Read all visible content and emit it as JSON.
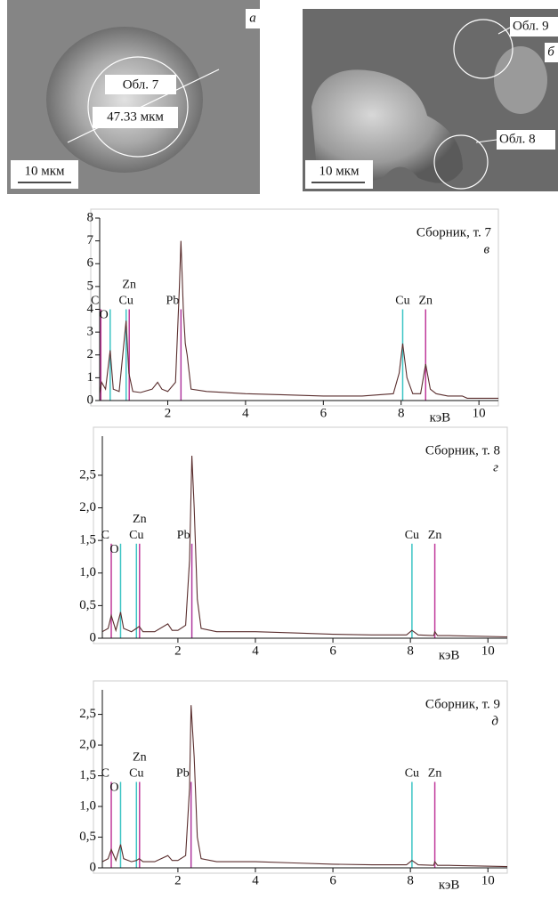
{
  "images": [
    {
      "letter": "а",
      "region": "Обл. 7",
      "size": "47.33 мкм",
      "scale": "10 мкм"
    },
    {
      "letter": "б",
      "regions": [
        "Обл. 9",
        "Обл. 8"
      ],
      "scale": "10 мкм"
    }
  ],
  "chart_data": [
    {
      "type": "line",
      "annotation": "Сборник, т. 7",
      "letter": "в",
      "x_label": "кэВ",
      "xlim": [
        0.25,
        10.5
      ],
      "xticks": [
        2,
        4,
        6,
        8,
        10
      ],
      "ylim": [
        0,
        8
      ],
      "yticks": [
        0,
        1,
        2,
        3,
        4,
        5,
        6,
        7,
        8
      ],
      "color": "#5a2e2e",
      "x": [
        0.25,
        0.3,
        0.4,
        0.52,
        0.6,
        0.75,
        0.93,
        1.0,
        1.1,
        1.3,
        1.6,
        1.74,
        1.85,
        2.0,
        2.2,
        2.3,
        2.34,
        2.4,
        2.45,
        2.5,
        2.6,
        3.0,
        4,
        5,
        6,
        7,
        7.8,
        7.95,
        8.04,
        8.15,
        8.3,
        8.5,
        8.63,
        8.75,
        8.9,
        9.2,
        9.57,
        9.7,
        10.5
      ],
      "values": [
        0.3,
        0.8,
        0.5,
        2.2,
        0.5,
        0.4,
        3.5,
        1.2,
        0.4,
        0.35,
        0.5,
        0.8,
        0.5,
        0.4,
        0.8,
        5,
        7,
        4,
        2.5,
        2.0,
        0.5,
        0.4,
        0.3,
        0.25,
        0.2,
        0.2,
        0.3,
        1.2,
        2.5,
        1.0,
        0.3,
        0.3,
        1.6,
        0.5,
        0.3,
        0.2,
        0.2,
        0.1,
        0.1
      ],
      "lines": [
        {
          "label": "C",
          "x": 0.28,
          "height": 4,
          "color": "#c0399a"
        },
        {
          "label": "O",
          "x": 0.52,
          "height": 4,
          "color": "#3cc4c4"
        },
        {
          "label": "Cu",
          "x": 0.93,
          "height": 4,
          "color": "#3cc4c4"
        },
        {
          "label": "Zn",
          "x": 1.01,
          "height": 4,
          "color": "#c0399a"
        },
        {
          "label": "Pb",
          "x": 2.34,
          "height": 4,
          "color": "#b03aa0"
        },
        {
          "label": "Cu",
          "x": 8.04,
          "height": 4,
          "color": "#3cc4c4"
        },
        {
          "label": "Zn",
          "x": 8.63,
          "height": 4,
          "color": "#c0399a"
        }
      ]
    },
    {
      "type": "line",
      "annotation": "Сборник, т. 8",
      "letter": "г",
      "x_label": "кэВ",
      "xlim": [
        0.05,
        10.5
      ],
      "xticks": [
        2,
        4,
        6,
        8,
        10
      ],
      "ylim": [
        0,
        3.1
      ],
      "yticks": [
        0,
        {
          "value": 0.5,
          "label": "0,5"
        },
        {
          "value": 1,
          "label": "1,0"
        },
        {
          "value": 1.5,
          "label": "1,5"
        },
        {
          "value": 2,
          "label": "2,0"
        },
        {
          "value": 2.5,
          "label": "2,5"
        }
      ],
      "color": "#5a2e2e",
      "x": [
        0.05,
        0.2,
        0.28,
        0.4,
        0.52,
        0.6,
        0.8,
        0.93,
        1.0,
        1.1,
        1.4,
        1.74,
        1.85,
        2.0,
        2.2,
        2.3,
        2.36,
        2.42,
        2.5,
        2.6,
        3.0,
        4,
        5,
        6,
        7,
        7.9,
        8.04,
        8.2,
        8.6,
        8.63,
        8.7,
        9.0,
        10.5
      ],
      "values": [
        0.1,
        0.15,
        0.35,
        0.12,
        0.4,
        0.15,
        0.1,
        0.15,
        0.18,
        0.1,
        0.1,
        0.22,
        0.12,
        0.12,
        0.2,
        1.2,
        2.8,
        2.0,
        0.6,
        0.15,
        0.1,
        0.1,
        0.08,
        0.06,
        0.05,
        0.05,
        0.12,
        0.05,
        0.04,
        0.1,
        0.04,
        0.04,
        0.02
      ],
      "lines": [
        {
          "label": "C",
          "x": 0.28,
          "height": 1.45,
          "color": "#c0399a"
        },
        {
          "label": "O",
          "x": 0.52,
          "height": 1.45,
          "color": "#3cc4c4"
        },
        {
          "label": "Cu",
          "x": 0.93,
          "height": 1.45,
          "color": "#3cc4c4"
        },
        {
          "label": "Zn",
          "x": 1.01,
          "height": 1.45,
          "color": "#c0399a"
        },
        {
          "label": "Pb",
          "x": 2.36,
          "height": 1.45,
          "color": "#b03aa0"
        },
        {
          "label": "Cu",
          "x": 8.04,
          "height": 1.45,
          "color": "#3cc4c4"
        },
        {
          "label": "Zn",
          "x": 8.63,
          "height": 1.45,
          "color": "#c0399a"
        }
      ]
    },
    {
      "type": "line",
      "annotation": "Сборник, т. 9",
      "letter": "д",
      "x_label": "кэВ",
      "xlim": [
        0.05,
        10.5
      ],
      "xticks": [
        2,
        4,
        6,
        8,
        10
      ],
      "ylim": [
        0,
        2.9
      ],
      "yticks": [
        0,
        {
          "value": 0.5,
          "label": "0,5"
        },
        {
          "value": 1,
          "label": "1,0"
        },
        {
          "value": 1.5,
          "label": "1,5"
        },
        {
          "value": 2,
          "label": "2,0"
        },
        {
          "value": 2.5,
          "label": "2,5"
        }
      ],
      "color": "#5a2e2e",
      "x": [
        0.05,
        0.2,
        0.28,
        0.4,
        0.52,
        0.6,
        0.8,
        0.93,
        1.0,
        1.1,
        1.4,
        1.74,
        1.85,
        2.0,
        2.2,
        2.3,
        2.34,
        2.42,
        2.5,
        2.6,
        3.0,
        4,
        5,
        6,
        7,
        7.9,
        8.04,
        8.2,
        8.6,
        8.63,
        8.7,
        9.0,
        10.5
      ],
      "values": [
        0.1,
        0.15,
        0.3,
        0.12,
        0.38,
        0.15,
        0.1,
        0.12,
        0.15,
        0.1,
        0.1,
        0.2,
        0.12,
        0.12,
        0.2,
        1.3,
        2.65,
        1.8,
        0.5,
        0.15,
        0.1,
        0.1,
        0.08,
        0.06,
        0.05,
        0.05,
        0.12,
        0.05,
        0.04,
        0.1,
        0.04,
        0.04,
        0.02
      ],
      "lines": [
        {
          "label": "C",
          "x": 0.28,
          "height": 1.4,
          "color": "#c0399a"
        },
        {
          "label": "O",
          "x": 0.52,
          "height": 1.4,
          "color": "#3cc4c4"
        },
        {
          "label": "Cu",
          "x": 0.93,
          "height": 1.4,
          "color": "#3cc4c4"
        },
        {
          "label": "Zn",
          "x": 1.01,
          "height": 1.4,
          "color": "#c0399a"
        },
        {
          "label": "Pb",
          "x": 2.34,
          "height": 1.4,
          "color": "#b03aa0"
        },
        {
          "label": "Cu",
          "x": 8.04,
          "height": 1.4,
          "color": "#3cc4c4"
        },
        {
          "label": "Zn",
          "x": 8.63,
          "height": 1.4,
          "color": "#c0399a"
        }
      ]
    }
  ]
}
